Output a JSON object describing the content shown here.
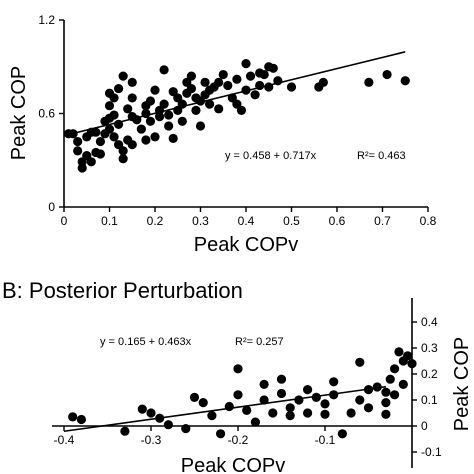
{
  "chart_data": [
    {
      "type": "scatter",
      "title": "",
      "xlabel": "Peak COPv",
      "ylabel": "Peak COP",
      "xlim": [
        0,
        0.8
      ],
      "ylim": [
        0,
        1.2
      ],
      "x_ticks": [
        "0",
        "0.1",
        "0.2",
        "0.3",
        "0.4",
        "0.5",
        "0.6",
        "0.7",
        "0.8"
      ],
      "y_ticks": [
        "0",
        "0.6",
        "1.2"
      ],
      "grid": false,
      "regression": {
        "intercept": 0.458,
        "slope": 0.717,
        "x_range": [
          0,
          0.75
        ]
      },
      "annotation": "y = 0.458 + 0.717x",
      "annotation_r2": "R²= 0.463",
      "points": [
        [
          0.01,
          0.47
        ],
        [
          0.02,
          0.47
        ],
        [
          0.03,
          0.42
        ],
        [
          0.03,
          0.36
        ],
        [
          0.04,
          0.29
        ],
        [
          0.04,
          0.25
        ],
        [
          0.05,
          0.45
        ],
        [
          0.05,
          0.33
        ],
        [
          0.06,
          0.48
        ],
        [
          0.06,
          0.29
        ],
        [
          0.07,
          0.35
        ],
        [
          0.07,
          0.48
        ],
        [
          0.08,
          0.34
        ],
        [
          0.08,
          0.42
        ],
        [
          0.09,
          0.47
        ],
        [
          0.09,
          0.55
        ],
        [
          0.1,
          0.5
        ],
        [
          0.1,
          0.57
        ],
        [
          0.1,
          0.65
        ],
        [
          0.1,
          0.73
        ],
        [
          0.11,
          0.59
        ],
        [
          0.11,
          0.45
        ],
        [
          0.11,
          0.7
        ],
        [
          0.12,
          0.76
        ],
        [
          0.12,
          0.53
        ],
        [
          0.12,
          0.4
        ],
        [
          0.13,
          0.84
        ],
        [
          0.13,
          0.31
        ],
        [
          0.13,
          0.36
        ],
        [
          0.14,
          0.43
        ],
        [
          0.14,
          0.63
        ],
        [
          0.15,
          0.58
        ],
        [
          0.15,
          0.7
        ],
        [
          0.15,
          0.8
        ],
        [
          0.15,
          0.4
        ],
        [
          0.16,
          0.56
        ],
        [
          0.17,
          0.5
        ],
        [
          0.18,
          0.43
        ],
        [
          0.18,
          0.6
        ],
        [
          0.18,
          0.65
        ],
        [
          0.19,
          0.55
        ],
        [
          0.19,
          0.68
        ],
        [
          0.2,
          0.75
        ],
        [
          0.2,
          0.45
        ],
        [
          0.21,
          0.62
        ],
        [
          0.21,
          0.58
        ],
        [
          0.22,
          0.66
        ],
        [
          0.22,
          0.88
        ],
        [
          0.23,
          0.59
        ],
        [
          0.23,
          0.52
        ],
        [
          0.24,
          0.74
        ],
        [
          0.24,
          0.44
        ],
        [
          0.25,
          0.7
        ],
        [
          0.25,
          0.62
        ],
        [
          0.26,
          0.66
        ],
        [
          0.26,
          0.55
        ],
        [
          0.27,
          0.73
        ],
        [
          0.27,
          0.8
        ],
        [
          0.28,
          0.76
        ],
        [
          0.28,
          0.84
        ],
        [
          0.29,
          0.7
        ],
        [
          0.29,
          0.62
        ],
        [
          0.3,
          0.68
        ],
        [
          0.3,
          0.52
        ],
        [
          0.31,
          0.72
        ],
        [
          0.31,
          0.8
        ],
        [
          0.32,
          0.75
        ],
        [
          0.32,
          0.66
        ],
        [
          0.33,
          0.77
        ],
        [
          0.34,
          0.63
        ],
        [
          0.34,
          0.8
        ],
        [
          0.35,
          0.85
        ],
        [
          0.36,
          0.78
        ],
        [
          0.37,
          0.7
        ],
        [
          0.38,
          0.82
        ],
        [
          0.38,
          0.66
        ],
        [
          0.39,
          0.62
        ],
        [
          0.4,
          0.75
        ],
        [
          0.4,
          0.92
        ],
        [
          0.41,
          0.84
        ],
        [
          0.42,
          0.72
        ],
        [
          0.43,
          0.86
        ],
        [
          0.43,
          0.78
        ],
        [
          0.44,
          0.85
        ],
        [
          0.45,
          0.9
        ],
        [
          0.45,
          0.77
        ],
        [
          0.46,
          0.89
        ],
        [
          0.47,
          0.81
        ],
        [
          0.5,
          0.77
        ],
        [
          0.56,
          0.77
        ],
        [
          0.57,
          0.8
        ],
        [
          0.67,
          0.8
        ],
        [
          0.71,
          0.85
        ],
        [
          0.75,
          0.81
        ]
      ]
    },
    {
      "type": "scatter",
      "title": "B: Posterior Perturbation",
      "xlabel": "Peak COPv",
      "ylabel": "Peak COP",
      "xlim": [
        -0.4,
        0
      ],
      "ylim": [
        -0.1,
        0.4
      ],
      "x_ticks": [
        "-0.4",
        "-0.3",
        "-0.2",
        "-0.1"
      ],
      "y_ticks": [
        "-0.1",
        "0",
        "0.1",
        "0.2",
        "0.3",
        "0.4"
      ],
      "grid": false,
      "regression": {
        "intercept": 0.165,
        "slope": 0.463,
        "x_range": [
          -0.4,
          -0.03
        ]
      },
      "annotation": "y = 0.165 + 0.463x",
      "annotation_r2": "R²= 0.257",
      "points": [
        [
          -0.39,
          0.035
        ],
        [
          -0.38,
          0.025
        ],
        [
          -0.33,
          -0.02
        ],
        [
          -0.31,
          0.065
        ],
        [
          -0.3,
          0.05
        ],
        [
          -0.29,
          0.03
        ],
        [
          -0.28,
          0.005
        ],
        [
          -0.26,
          -0.01
        ],
        [
          -0.25,
          0.11
        ],
        [
          -0.24,
          0.09
        ],
        [
          -0.23,
          0.04
        ],
        [
          -0.22,
          -0.03
        ],
        [
          -0.21,
          0.075
        ],
        [
          -0.2,
          0.22
        ],
        [
          -0.2,
          0.12
        ],
        [
          -0.19,
          0.06
        ],
        [
          -0.18,
          0.015
        ],
        [
          -0.17,
          0.1
        ],
        [
          -0.17,
          0.16
        ],
        [
          -0.16,
          0.05
        ],
        [
          -0.15,
          0.18
        ],
        [
          -0.15,
          0.125
        ],
        [
          -0.14,
          0.04
        ],
        [
          -0.14,
          0.07
        ],
        [
          -0.13,
          0.1
        ],
        [
          -0.12,
          0.05
        ],
        [
          -0.12,
          0.14
        ],
        [
          -0.11,
          0.11
        ],
        [
          -0.1,
          0.085
        ],
        [
          -0.1,
          0.045
        ],
        [
          -0.09,
          0.17
        ],
        [
          -0.09,
          0.12
        ],
        [
          -0.08,
          -0.03
        ],
        [
          -0.07,
          0.05
        ],
        [
          -0.06,
          0.245
        ],
        [
          -0.06,
          0.1
        ],
        [
          -0.05,
          0.14
        ],
        [
          -0.05,
          0.07
        ],
        [
          -0.04,
          0.15
        ],
        [
          -0.03,
          0.09
        ],
        [
          -0.03,
          0.045
        ],
        [
          -0.025,
          0.18
        ],
        [
          -0.02,
          0.22
        ],
        [
          -0.02,
          0.12
        ],
        [
          -0.015,
          0.285
        ],
        [
          -0.01,
          0.25
        ],
        [
          -0.005,
          0.27
        ],
        [
          0.0,
          0.24
        ],
        [
          -0.01,
          0.16
        ],
        [
          -0.03,
          0.13
        ]
      ]
    }
  ]
}
